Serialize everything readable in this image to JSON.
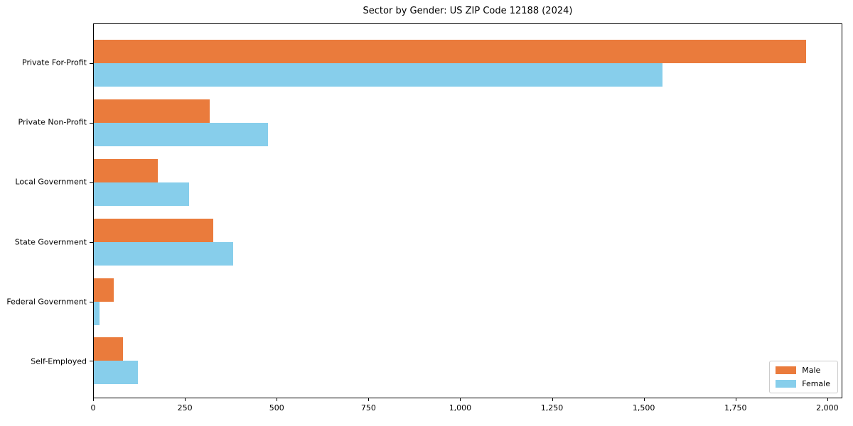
{
  "chart_data": {
    "type": "bar",
    "orientation": "horizontal",
    "title": "Sector by Gender: US ZIP Code 12188 (2024)",
    "xlabel": "",
    "ylabel": "",
    "categories": [
      "Private For-Profit",
      "Private Non-Profit",
      "Local Government",
      "State Government",
      "Federal Government",
      "Self-Employed"
    ],
    "series": [
      {
        "name": "Male",
        "color": "#ea7b3c",
        "values": [
          1940,
          315,
          175,
          325,
          55,
          80
        ]
      },
      {
        "name": "Female",
        "color": "#87ceeb",
        "values": [
          1550,
          475,
          260,
          380,
          15,
          120
        ]
      }
    ],
    "xlim": [
      0,
      2037
    ],
    "x_ticks": [
      {
        "value": 0,
        "label": "0"
      },
      {
        "value": 250,
        "label": "250"
      },
      {
        "value": 500,
        "label": "500"
      },
      {
        "value": 750,
        "label": "750"
      },
      {
        "value": 1000,
        "label": "1,000"
      },
      {
        "value": 1250,
        "label": "1,250"
      },
      {
        "value": 1500,
        "label": "1,500"
      },
      {
        "value": 1750,
        "label": "1,750"
      },
      {
        "value": 2000,
        "label": "2,000"
      }
    ],
    "grid": false,
    "legend_position": "lower right"
  }
}
